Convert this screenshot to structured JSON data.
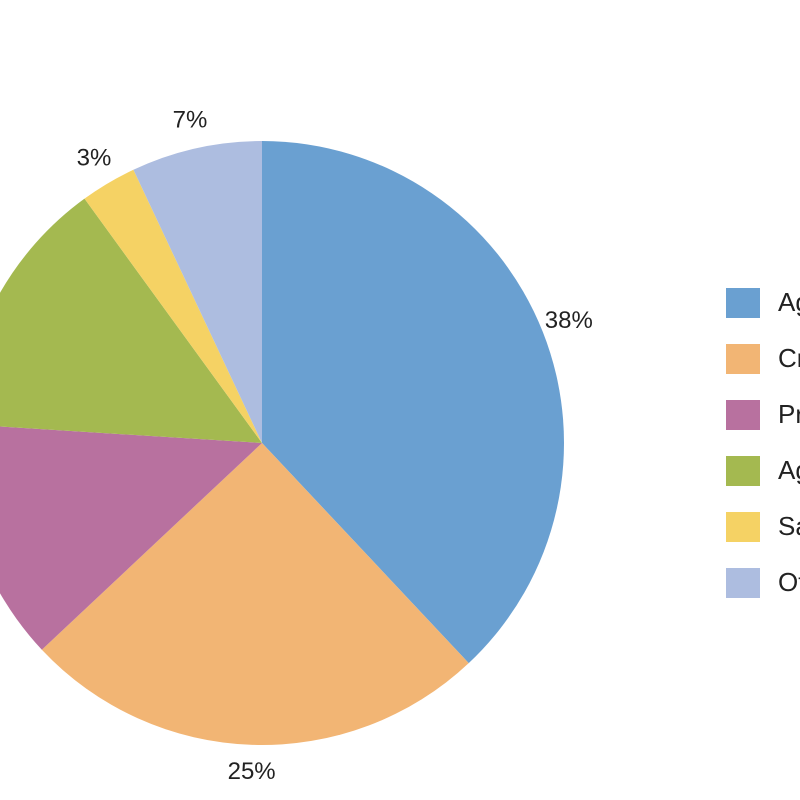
{
  "chart_data": {
    "type": "pie",
    "categories": [
      "Ag",
      "Cr",
      "Pr",
      "Ag",
      "Sa",
      "Ot"
    ],
    "values": [
      38,
      25,
      13,
      14,
      3,
      7
    ],
    "value_labels": [
      "38%",
      "25%",
      null,
      null,
      "3%",
      "7%"
    ],
    "colors": [
      "#6aa0d1",
      "#f2b574",
      "#b8719f",
      "#a4b950",
      "#f5d264",
      "#adbde0"
    ],
    "legend": "right"
  }
}
